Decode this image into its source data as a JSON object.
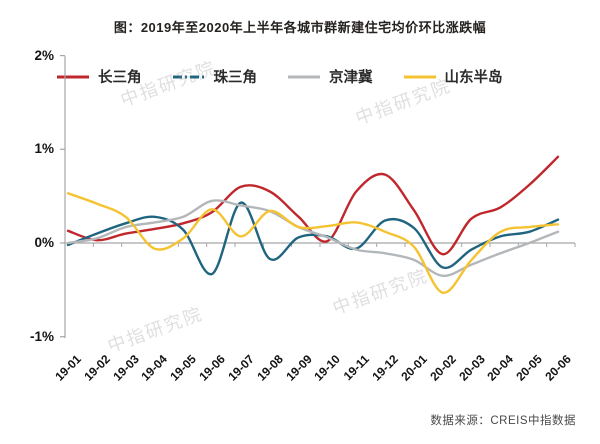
{
  "title": "图：2019年至2020年上半年各城市群新建住宅均价环比涨跌幅",
  "source": "数据来源：CREIS中指数据",
  "watermark": "中指研究院",
  "colors": {
    "red": "#c0272d",
    "blue": "#20657f",
    "gray": "#b4b7ba",
    "yellow": "#f5c332",
    "axis": "#a6a6a6",
    "text": "#141414"
  },
  "chart_data": {
    "type": "line",
    "title": "图：2019年至2020年上半年各城市群新建住宅均价环比涨跌幅",
    "xlabel": "",
    "ylabel": "",
    "unit": "%",
    "grid": false,
    "legend_position": "top",
    "zero_axis_line": true,
    "ylim": [
      -1,
      2
    ],
    "y_axis": {
      "ticks": [
        {
          "label": "2%",
          "value": 2
        },
        {
          "label": "1%",
          "value": 1
        },
        {
          "label": "0%",
          "value": 0
        },
        {
          "label": "-1%",
          "value": -1
        }
      ]
    },
    "x": [
      "19-01",
      "19-02",
      "19-03",
      "19-04",
      "19-05",
      "19-06",
      "19-07",
      "19-08",
      "19-09",
      "19-10",
      "19-11",
      "19-12",
      "20-01",
      "20-02",
      "20-03",
      "20-04",
      "20-05",
      "20-06"
    ],
    "series": [
      {
        "name": "长三角",
        "color": "#c0272d",
        "style": "solid",
        "values": [
          0.13,
          0.03,
          0.1,
          0.15,
          0.21,
          0.33,
          0.6,
          0.55,
          0.28,
          0.02,
          0.55,
          0.73,
          0.35,
          -0.12,
          0.26,
          0.38,
          0.62,
          0.92
        ]
      },
      {
        "name": "珠三角",
        "color": "#20657f",
        "style": "dash-dot",
        "values": [
          -0.02,
          0.1,
          0.21,
          0.28,
          0.14,
          -0.33,
          0.43,
          -0.17,
          0.06,
          0.07,
          -0.06,
          0.24,
          0.16,
          -0.26,
          -0.07,
          0.07,
          0.12,
          0.25
        ]
      },
      {
        "name": "京津冀",
        "color": "#b4b7ba",
        "style": "solid",
        "values": [
          0.0,
          0.05,
          0.17,
          0.22,
          0.28,
          0.45,
          0.4,
          0.34,
          0.17,
          0.06,
          -0.07,
          -0.11,
          -0.18,
          -0.35,
          -0.23,
          -0.11,
          0.0,
          0.12
        ]
      },
      {
        "name": "山东半岛",
        "color": "#f5c332",
        "style": "solid",
        "values": [
          0.53,
          0.42,
          0.28,
          -0.06,
          0.05,
          0.36,
          0.07,
          0.34,
          0.17,
          0.18,
          0.22,
          0.12,
          -0.04,
          -0.53,
          -0.18,
          0.12,
          0.17,
          0.2
        ]
      }
    ]
  }
}
